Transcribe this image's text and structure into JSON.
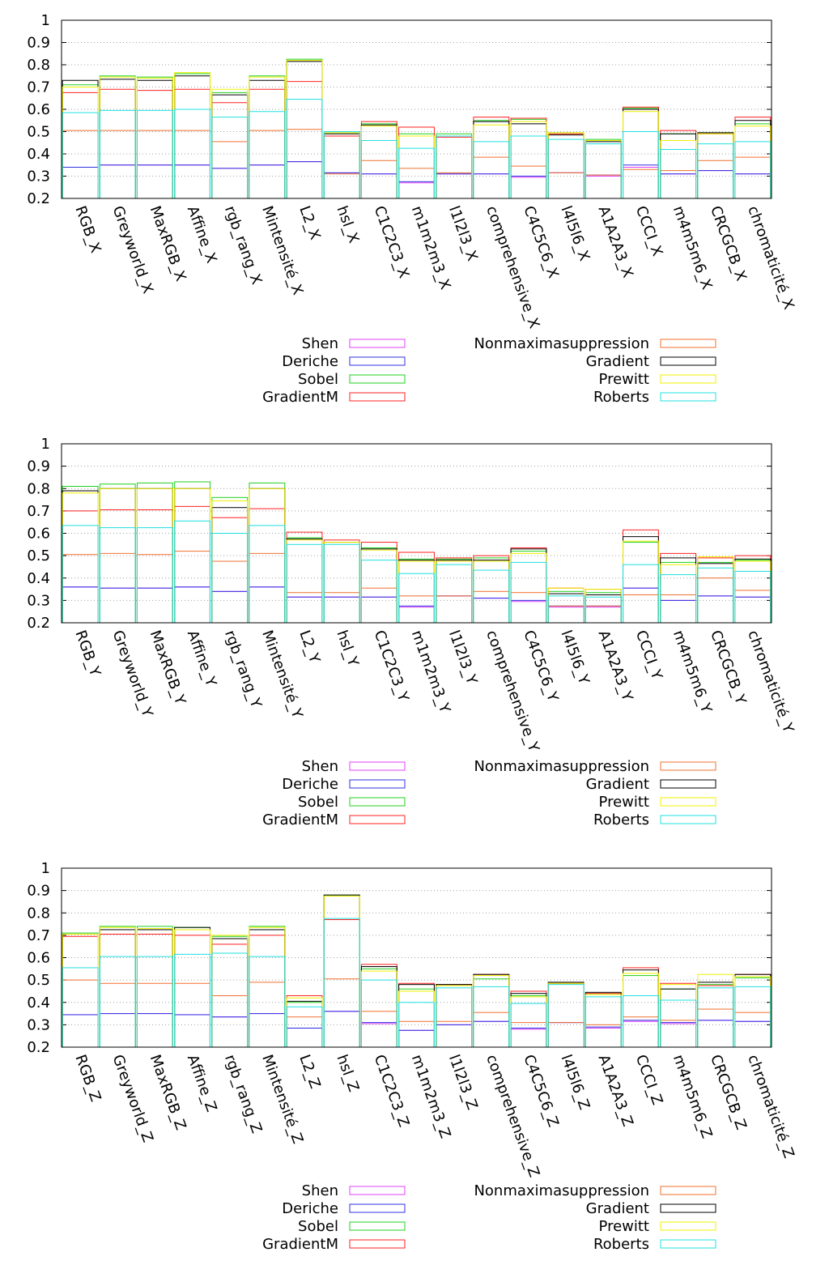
{
  "legend": [
    {
      "name": "Shen",
      "color": "#e040fb"
    },
    {
      "name": "Deriche",
      "color": "#3030e0"
    },
    {
      "name": "Sobel",
      "color": "#20d020"
    },
    {
      "name": "GradientM",
      "color": "#ff2020"
    },
    {
      "name": "Nonmaximasuppression",
      "color": "#f07030"
    },
    {
      "name": "Gradient",
      "color": "#000000"
    },
    {
      "name": "Prewitt",
      "color": "#f0f000"
    },
    {
      "name": "Roberts",
      "color": "#20e0e0"
    }
  ],
  "chart_data": [
    {
      "type": "bar",
      "ylim": [
        0.2,
        1
      ],
      "yticks": [
        "0.2",
        "0.3",
        "0.4",
        "0.5",
        "0.6",
        "0.7",
        "0.8",
        "0.9",
        "1"
      ],
      "grid": "horizontal dotted",
      "legend_position": "bottom",
      "categories": [
        "RGB_X",
        "Greyworld_X",
        "MaxRGB_X",
        "Affine_X",
        "rgb_rang_X",
        "Mintensité_X",
        "L2_X",
        "hsl_X",
        "C1C2C3_X",
        "m1m2m3_X",
        "l1l2l3_X",
        "comprehensive_X",
        "C4C5C6_X",
        "l4l5l6_X",
        "A1A2A3_X",
        "CCCI_X",
        "m4m5m6_X",
        "CRCGCB_X",
        "chromaticité_X"
      ],
      "series": [
        {
          "name": "Shen",
          "values": [
            0.34,
            0.35,
            0.35,
            0.35,
            0.335,
            0.35,
            0.365,
            0.315,
            0.31,
            0.27,
            0.31,
            0.31,
            0.295,
            0.315,
            0.3,
            0.34,
            0.31,
            0.325,
            0.31
          ]
        },
        {
          "name": "Deriche",
          "values": [
            0.34,
            0.35,
            0.35,
            0.35,
            0.335,
            0.35,
            0.365,
            0.315,
            0.31,
            0.275,
            0.31,
            0.31,
            0.3,
            0.315,
            0.305,
            0.35,
            0.31,
            0.325,
            0.31
          ]
        },
        {
          "name": "Sobel",
          "values": [
            0.71,
            0.75,
            0.745,
            0.76,
            0.675,
            0.75,
            0.825,
            0.495,
            0.535,
            0.49,
            0.49,
            0.55,
            0.555,
            0.495,
            0.465,
            0.605,
            0.49,
            0.495,
            0.535
          ]
        },
        {
          "name": "GradientM",
          "values": [
            0.675,
            0.69,
            0.685,
            0.69,
            0.63,
            0.69,
            0.725,
            0.48,
            0.545,
            0.52,
            0.475,
            0.565,
            0.56,
            0.49,
            0.46,
            0.61,
            0.505,
            0.49,
            0.565
          ]
        },
        {
          "name": "Nonmaximasuppression",
          "values": [
            0.505,
            0.505,
            0.505,
            0.505,
            0.455,
            0.505,
            0.51,
            0.31,
            0.37,
            0.335,
            0.315,
            0.385,
            0.345,
            0.315,
            0.305,
            0.33,
            0.325,
            0.37,
            0.385
          ]
        },
        {
          "name": "Gradient",
          "values": [
            0.73,
            0.735,
            0.73,
            0.75,
            0.665,
            0.73,
            0.815,
            0.49,
            0.53,
            0.48,
            0.48,
            0.545,
            0.535,
            0.485,
            0.455,
            0.6,
            0.49,
            0.495,
            0.55
          ]
        },
        {
          "name": "Prewitt",
          "values": [
            0.7,
            0.745,
            0.74,
            0.765,
            0.69,
            0.745,
            0.82,
            0.495,
            0.525,
            0.48,
            0.48,
            0.53,
            0.545,
            0.495,
            0.46,
            0.59,
            0.46,
            0.49,
            0.525
          ]
        },
        {
          "name": "Roberts",
          "values": [
            0.585,
            0.595,
            0.595,
            0.6,
            0.565,
            0.59,
            0.645,
            0.5,
            0.46,
            0.425,
            0.48,
            0.455,
            0.48,
            0.465,
            0.445,
            0.5,
            0.42,
            0.445,
            0.455
          ]
        }
      ]
    },
    {
      "type": "bar",
      "ylim": [
        0.2,
        1
      ],
      "yticks": [
        "0.2",
        "0.3",
        "0.4",
        "0.5",
        "0.6",
        "0.7",
        "0.8",
        "0.9",
        "1"
      ],
      "grid": "horizontal dotted",
      "legend_position": "bottom",
      "categories": [
        "RGB_Y",
        "Greyworld_Y",
        "MaxRGB_Y",
        "Affine_Y",
        "rgb_rang_Y",
        "Mintensité_Y",
        "L2_Y",
        "hsl_Y",
        "C1C2C3_Y",
        "m1m2m3_Y",
        "l1l2l3_Y",
        "comprehensive_Y",
        "C4C5C6_Y",
        "l4l5l6_Y",
        "A1A2A3_Y",
        "CCCI_Y",
        "m4m5m6_Y",
        "CRCGCB_Y",
        "chromaticité_Y"
      ],
      "series": [
        {
          "name": "Shen",
          "values": [
            0.36,
            0.355,
            0.355,
            0.36,
            0.34,
            0.36,
            0.315,
            0.315,
            0.315,
            0.27,
            0.32,
            0.31,
            0.295,
            0.27,
            0.27,
            0.355,
            0.3,
            0.32,
            0.315
          ]
        },
        {
          "name": "Deriche",
          "values": [
            0.36,
            0.355,
            0.355,
            0.36,
            0.34,
            0.36,
            0.315,
            0.315,
            0.315,
            0.275,
            0.32,
            0.31,
            0.3,
            0.275,
            0.275,
            0.355,
            0.3,
            0.32,
            0.315
          ]
        },
        {
          "name": "Sobel",
          "values": [
            0.81,
            0.82,
            0.825,
            0.83,
            0.76,
            0.825,
            0.58,
            0.56,
            0.535,
            0.485,
            0.485,
            0.49,
            0.52,
            0.34,
            0.335,
            0.56,
            0.47,
            0.47,
            0.48
          ]
        },
        {
          "name": "GradientM",
          "values": [
            0.7,
            0.705,
            0.705,
            0.72,
            0.67,
            0.71,
            0.605,
            0.57,
            0.56,
            0.515,
            0.49,
            0.5,
            0.535,
            0.355,
            0.35,
            0.615,
            0.51,
            0.49,
            0.5
          ]
        },
        {
          "name": "Nonmaximasuppression",
          "values": [
            0.505,
            0.51,
            0.505,
            0.52,
            0.475,
            0.51,
            0.335,
            0.335,
            0.355,
            0.32,
            0.32,
            0.34,
            0.335,
            0.275,
            0.275,
            0.325,
            0.325,
            0.4,
            0.345
          ]
        },
        {
          "name": "Gradient",
          "values": [
            0.79,
            0.8,
            0.8,
            0.8,
            0.715,
            0.8,
            0.575,
            0.56,
            0.53,
            0.48,
            0.48,
            0.48,
            0.53,
            0.33,
            0.325,
            0.585,
            0.49,
            0.465,
            0.485
          ]
        },
        {
          "name": "Prewitt",
          "values": [
            0.78,
            0.8,
            0.8,
            0.8,
            0.745,
            0.8,
            0.57,
            0.56,
            0.525,
            0.475,
            0.475,
            0.475,
            0.51,
            0.355,
            0.35,
            0.565,
            0.46,
            0.495,
            0.475
          ]
        },
        {
          "name": "Roberts",
          "values": [
            0.635,
            0.625,
            0.625,
            0.655,
            0.6,
            0.635,
            0.55,
            0.55,
            0.48,
            0.42,
            0.46,
            0.435,
            0.47,
            0.32,
            0.315,
            0.46,
            0.415,
            0.445,
            0.43
          ]
        }
      ]
    },
    {
      "type": "bar",
      "ylim": [
        0.2,
        1
      ],
      "yticks": [
        "0.2",
        "0.3",
        "0.4",
        "0.5",
        "0.6",
        "0.7",
        "0.8",
        "0.9",
        "1"
      ],
      "grid": "horizontal dotted",
      "legend_position": "bottom",
      "categories": [
        "RGB_Z",
        "Greyworld_Z",
        "MaxRGB_Z",
        "Affine_Z",
        "rgb_rang_Z",
        "Mintensité_Z",
        "L2_Z",
        "hsl_Z",
        "C1C2C3_Z",
        "m1m2m3_Z",
        "l1l2l3_Z",
        "comprehensive_Z",
        "C4C5C6_Z",
        "l4l5l6_Z",
        "A1A2A3_Z",
        "CCCI_Z",
        "m4m5m6_Z",
        "CRCGCB_Z",
        "chromaticité_Z"
      ],
      "series": [
        {
          "name": "Shen",
          "values": [
            0.345,
            0.35,
            0.35,
            0.345,
            0.335,
            0.35,
            0.285,
            0.36,
            0.305,
            0.275,
            0.3,
            0.315,
            0.28,
            0.31,
            0.285,
            0.315,
            0.305,
            0.32,
            0.315
          ]
        },
        {
          "name": "Deriche",
          "values": [
            0.345,
            0.35,
            0.35,
            0.345,
            0.335,
            0.35,
            0.285,
            0.36,
            0.31,
            0.275,
            0.3,
            0.315,
            0.285,
            0.31,
            0.29,
            0.32,
            0.31,
            0.32,
            0.315
          ]
        },
        {
          "name": "Sobel",
          "values": [
            0.71,
            0.74,
            0.74,
            0.735,
            0.695,
            0.74,
            0.4,
            0.88,
            0.55,
            0.46,
            0.48,
            0.505,
            0.43,
            0.485,
            0.44,
            0.52,
            0.46,
            0.48,
            0.51
          ]
        },
        {
          "name": "GradientM",
          "values": [
            0.695,
            0.705,
            0.705,
            0.7,
            0.66,
            0.7,
            0.43,
            0.77,
            0.57,
            0.485,
            0.48,
            0.525,
            0.45,
            0.485,
            0.44,
            0.555,
            0.485,
            0.475,
            0.525
          ]
        },
        {
          "name": "Nonmaximasuppression",
          "values": [
            0.5,
            0.485,
            0.485,
            0.485,
            0.43,
            0.49,
            0.335,
            0.505,
            0.36,
            0.315,
            0.315,
            0.355,
            0.31,
            0.31,
            0.3,
            0.335,
            0.32,
            0.37,
            0.355
          ]
        },
        {
          "name": "Gradient",
          "values": [
            0.705,
            0.725,
            0.725,
            0.735,
            0.685,
            0.725,
            0.405,
            0.88,
            0.56,
            0.48,
            0.48,
            0.525,
            0.44,
            0.49,
            0.445,
            0.545,
            0.46,
            0.49,
            0.525
          ]
        },
        {
          "name": "Prewitt",
          "values": [
            0.705,
            0.735,
            0.73,
            0.725,
            0.7,
            0.735,
            0.42,
            0.875,
            0.54,
            0.45,
            0.475,
            0.52,
            0.425,
            0.485,
            0.435,
            0.53,
            0.48,
            0.525,
            0.515
          ]
        },
        {
          "name": "Roberts",
          "values": [
            0.555,
            0.605,
            0.605,
            0.615,
            0.62,
            0.605,
            0.38,
            0.775,
            0.5,
            0.4,
            0.465,
            0.47,
            0.395,
            0.48,
            0.425,
            0.43,
            0.41,
            0.465,
            0.47
          ]
        }
      ]
    }
  ]
}
